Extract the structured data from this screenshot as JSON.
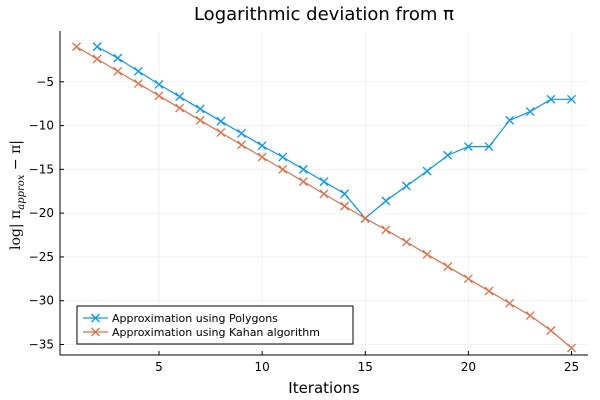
{
  "chart_data": {
    "type": "line",
    "title": "Logarithmic deviation from π",
    "xlabel": "Iterations",
    "ylabel": {
      "prefix": "log| π",
      "subscript": "approx",
      "suffix": " − π|"
    },
    "xlim": [
      0.2,
      25.8
    ],
    "ylim": [
      -36.2,
      0.8
    ],
    "xticks": [
      5,
      10,
      15,
      20,
      25
    ],
    "yticks": [
      -5,
      -10,
      -15,
      -20,
      -25,
      -30,
      -35
    ],
    "xtick_labels": [
      "5",
      "10",
      "15",
      "20",
      "25"
    ],
    "ytick_labels": [
      "−5",
      "−10",
      "−15",
      "−20",
      "−25",
      "−30",
      "−35"
    ],
    "grid": true,
    "legend_position": "bottom-left",
    "series": [
      {
        "name": "Approximation using Polygons",
        "color": "#009af9",
        "marker": "x",
        "x": [
          2,
          3,
          4,
          5,
          6,
          7,
          8,
          9,
          10,
          11,
          12,
          13,
          14,
          15,
          16,
          17,
          18,
          19,
          20,
          21,
          22,
          23,
          24,
          25
        ],
        "y": [
          -1.0,
          -2.3,
          -3.8,
          -5.3,
          -6.7,
          -8.1,
          -9.5,
          -10.9,
          -12.3,
          -13.6,
          -15.0,
          -16.4,
          -17.8,
          -20.6,
          -18.6,
          -16.9,
          -15.2,
          -13.4,
          -12.4,
          -12.4,
          -9.4,
          -8.4,
          -7.0,
          -7.0
        ]
      },
      {
        "name": "Approximation using Kahan algorithm",
        "color": "#e26f46",
        "marker": "x",
        "x": [
          1,
          2,
          3,
          4,
          5,
          6,
          7,
          8,
          9,
          10,
          11,
          12,
          13,
          14,
          15,
          16,
          17,
          18,
          19,
          20,
          21,
          22,
          23,
          24,
          25
        ],
        "y": [
          -1.0,
          -2.4,
          -3.8,
          -5.2,
          -6.6,
          -8.0,
          -9.4,
          -10.8,
          -12.2,
          -13.6,
          -15.0,
          -16.4,
          -17.8,
          -19.2,
          -20.6,
          -21.9,
          -23.3,
          -24.7,
          -26.1,
          -27.5,
          -28.9,
          -30.3,
          -31.7,
          -33.4,
          -35.4
        ]
      }
    ]
  }
}
